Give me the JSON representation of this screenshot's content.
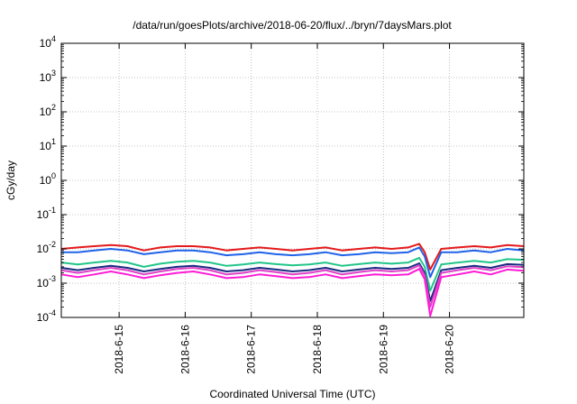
{
  "chart_data": {
    "type": "line",
    "title": "/data/run/goesPlots/archive/2018-06-20/flux/../bryn/7daysMars.plot",
    "xlabel": "Coordinated Universal Time (UTC)",
    "ylabel": "cGy/day",
    "yscale": "log",
    "ylim": [
      0.0001,
      10000
    ],
    "ytick_values": [
      0.0001,
      0.001,
      0.01,
      0.1,
      1,
      10,
      100,
      1000,
      10000
    ],
    "ytick_labels": [
      {
        "base": "10",
        "exp": "-4"
      },
      {
        "base": "10",
        "exp": "-3"
      },
      {
        "base": "10",
        "exp": "-2"
      },
      {
        "base": "10",
        "exp": "-1"
      },
      {
        "base": "10",
        "exp": "0"
      },
      {
        "base": "10",
        "exp": "1"
      },
      {
        "base": "10",
        "exp": "2"
      },
      {
        "base": "10",
        "exp": "3"
      },
      {
        "base": "10",
        "exp": "4"
      }
    ],
    "xlim": [
      "2018-06-14 03:00",
      "2018-06-21 03:00"
    ],
    "xtick_values": [
      "2018-06-15",
      "2018-06-16",
      "2018-06-17",
      "2018-06-18",
      "2018-06-19",
      "2018-06-20"
    ],
    "xtick_labels": [
      "2018-6-15",
      "2018-6-16",
      "2018-6-17",
      "2018-6-18",
      "2018-6-19",
      "2018-6-20"
    ],
    "grid": true,
    "x": [
      "2018-06-14 03:00",
      "2018-06-14 09:00",
      "2018-06-14 15:00",
      "2018-06-14 21:00",
      "2018-06-15 03:00",
      "2018-06-15 09:00",
      "2018-06-15 15:00",
      "2018-06-15 21:00",
      "2018-06-16 03:00",
      "2018-06-16 09:00",
      "2018-06-16 15:00",
      "2018-06-16 21:00",
      "2018-06-17 03:00",
      "2018-06-17 09:00",
      "2018-06-17 15:00",
      "2018-06-17 21:00",
      "2018-06-18 03:00",
      "2018-06-18 09:00",
      "2018-06-18 15:00",
      "2018-06-18 21:00",
      "2018-06-19 03:00",
      "2018-06-19 09:00",
      "2018-06-19 13:00",
      "2018-06-19 15:00",
      "2018-06-19 17:00",
      "2018-06-19 21:00",
      "2018-06-20 03:00",
      "2018-06-20 09:00",
      "2018-06-20 15:00",
      "2018-06-20 21:00",
      "2018-06-21 03:00"
    ],
    "series": [
      {
        "color": "#e41a1c",
        "values": [
          0.01,
          0.011,
          0.012,
          0.013,
          0.012,
          0.009,
          0.011,
          0.012,
          0.012,
          0.011,
          0.009,
          0.01,
          0.011,
          0.01,
          0.009,
          0.01,
          0.011,
          0.009,
          0.01,
          0.011,
          0.01,
          0.011,
          0.014,
          0.008,
          0.0025,
          0.01,
          0.011,
          0.012,
          0.011,
          0.013,
          0.012
        ]
      },
      {
        "color": "#1f62e8",
        "values": [
          0.008,
          0.008,
          0.009,
          0.01,
          0.009,
          0.007,
          0.008,
          0.009,
          0.009,
          0.008,
          0.0065,
          0.007,
          0.008,
          0.007,
          0.0065,
          0.007,
          0.008,
          0.0065,
          0.007,
          0.008,
          0.0075,
          0.008,
          0.011,
          0.006,
          0.0015,
          0.008,
          0.008,
          0.009,
          0.008,
          0.01,
          0.009
        ]
      },
      {
        "color": "#22c58a",
        "values": [
          0.004,
          0.0035,
          0.004,
          0.0045,
          0.004,
          0.003,
          0.0037,
          0.0042,
          0.0045,
          0.004,
          0.0032,
          0.0035,
          0.004,
          0.0036,
          0.0033,
          0.0035,
          0.004,
          0.0032,
          0.0036,
          0.004,
          0.0037,
          0.004,
          0.0055,
          0.003,
          0.0006,
          0.0035,
          0.004,
          0.0045,
          0.004,
          0.005,
          0.0048
        ]
      },
      {
        "color": "#1a2a80",
        "values": [
          0.0028,
          0.0024,
          0.0028,
          0.0032,
          0.0028,
          0.0022,
          0.0026,
          0.003,
          0.0032,
          0.0028,
          0.0022,
          0.0024,
          0.0028,
          0.0025,
          0.0022,
          0.0024,
          0.0028,
          0.0022,
          0.0025,
          0.0028,
          0.0026,
          0.0028,
          0.0038,
          0.002,
          0.0003,
          0.0024,
          0.0028,
          0.0032,
          0.0028,
          0.0036,
          0.0034
        ]
      },
      {
        "color": "#e040c8",
        "values": [
          0.0024,
          0.002,
          0.0024,
          0.0028,
          0.0024,
          0.0018,
          0.0022,
          0.0026,
          0.0028,
          0.0024,
          0.0018,
          0.002,
          0.0024,
          0.0021,
          0.0018,
          0.002,
          0.0024,
          0.0018,
          0.0021,
          0.0024,
          0.0022,
          0.0024,
          0.0033,
          0.0017,
          0.0002,
          0.002,
          0.0024,
          0.0028,
          0.0024,
          0.0031,
          0.0029
        ]
      },
      {
        "color": "#ff1bd6",
        "values": [
          0.0018,
          0.0015,
          0.0018,
          0.0022,
          0.0018,
          0.0014,
          0.0017,
          0.002,
          0.0022,
          0.0018,
          0.0014,
          0.0015,
          0.0018,
          0.0016,
          0.0014,
          0.0015,
          0.0018,
          0.0014,
          0.0016,
          0.0018,
          0.0017,
          0.0018,
          0.0026,
          0.0013,
          0.00011,
          0.0015,
          0.0018,
          0.0022,
          0.0018,
          0.0025,
          0.0023
        ]
      }
    ]
  }
}
